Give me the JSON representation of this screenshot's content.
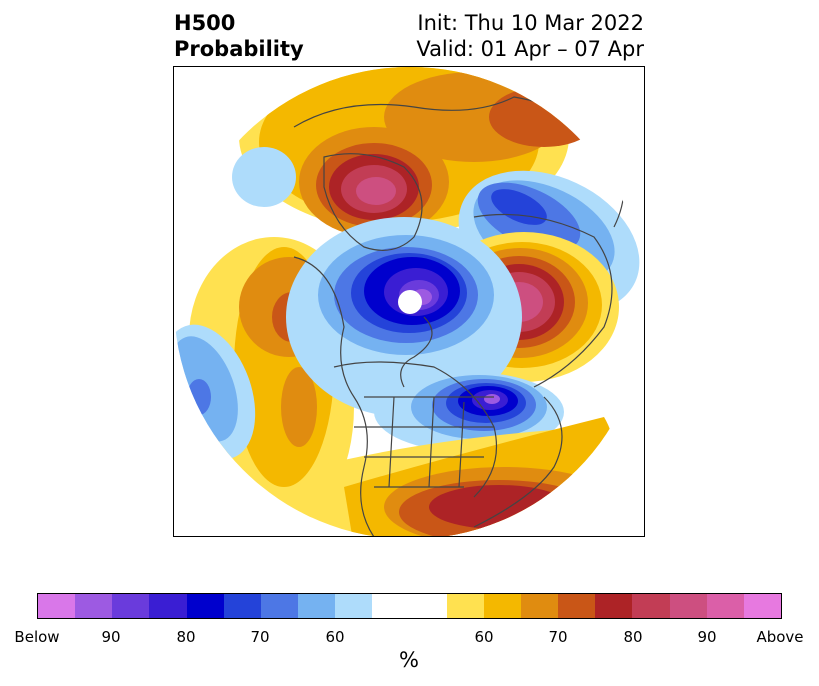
{
  "title": {
    "left_line1": "H500",
    "left_line2": "Probability",
    "right_line1": "Init: Thu 10 Mar 2022",
    "right_line2": "Valid: 01 Apr – 07 Apr"
  },
  "map": {
    "projection": "north-polar-stereographic",
    "region": "Northern Hemisphere / North America",
    "variable": "500 hPa height tercile probability",
    "features": [
      {
        "name": "below-center-north-pole",
        "sign": "below",
        "peak_percent": 90
      },
      {
        "name": "below-center-hudson-bay",
        "sign": "below",
        "peak_percent": 90
      },
      {
        "name": "below-center-siberia",
        "sign": "below",
        "peak_percent": 70
      },
      {
        "name": "below-center-north-pacific",
        "sign": "below",
        "peak_percent": 70
      },
      {
        "name": "above-center-europe",
        "sign": "above",
        "peak_percent": 90
      },
      {
        "name": "above-center-eastern-siberia",
        "sign": "above",
        "peak_percent": 90
      },
      {
        "name": "above-center-central-atlantic",
        "sign": "above",
        "peak_percent": 80
      },
      {
        "name": "above-center-east-pacific",
        "sign": "above",
        "peak_percent": 70
      }
    ]
  },
  "colorbar": {
    "colors": [
      "#d977e9",
      "#9d5ae2",
      "#6a3bdc",
      "#3a1ed3",
      "#0000cd",
      "#2443d9",
      "#4d77e5",
      "#75b2f1",
      "#aedcfb",
      "#ffffff",
      "#ffe150",
      "#f4b800",
      "#e08c10",
      "#c95617",
      "#ad2326",
      "#c23d55",
      "#cd4f80",
      "#db5fa8",
      "#e779e0"
    ],
    "tick_labels": [
      "Below",
      "90",
      "80",
      "70",
      "60",
      "60",
      "70",
      "80",
      "90",
      "Above"
    ],
    "unit": "%"
  }
}
